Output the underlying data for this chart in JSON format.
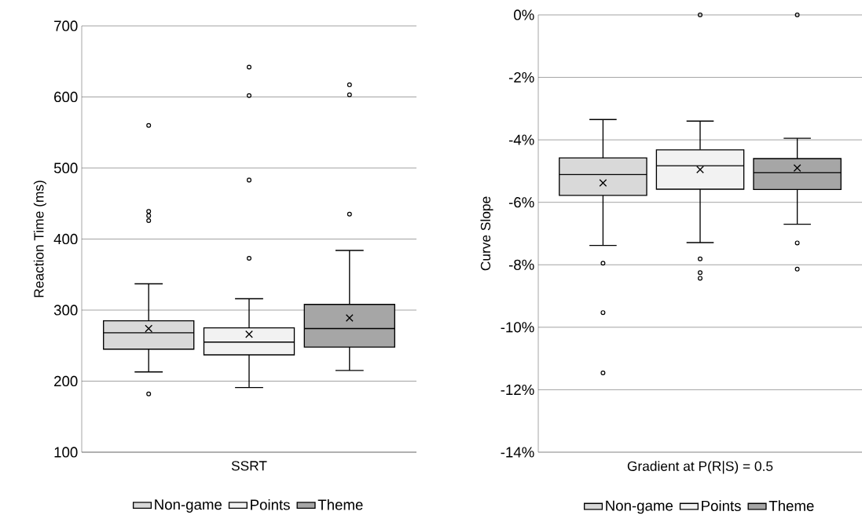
{
  "chart_data": [
    {
      "type": "box",
      "xlabel": "SSRT",
      "ylabel": "Reaction Time (ms)",
      "categories": [
        null
      ],
      "ylim": [
        100,
        700
      ],
      "yticks": [
        100,
        200,
        300,
        400,
        500,
        600,
        700
      ],
      "grid": "y",
      "legend": "bottom",
      "series": [
        {
          "name": "Non-game",
          "color": "#d9d9d9",
          "boxes": [
            {
              "low": 213,
              "q1": 245,
              "median": 268,
              "q3": 285,
              "high": 337,
              "mean": 274,
              "outliers": [
                560,
                439,
                433,
                426,
                182
              ]
            }
          ]
        },
        {
          "name": "Points",
          "color": "#f2f2f2",
          "boxes": [
            {
              "low": 191,
              "q1": 237,
              "median": 255,
              "q3": 275,
              "high": 316,
              "mean": 266,
              "outliers": [
                642,
                602,
                483,
                373
              ]
            }
          ]
        },
        {
          "name": "Theme",
          "color": "#a6a6a6",
          "boxes": [
            {
              "low": 215,
              "q1": 248,
              "median": 274,
              "q3": 308,
              "high": 384,
              "mean": 289,
              "outliers": [
                617,
                603,
                435
              ]
            }
          ]
        }
      ]
    },
    {
      "type": "box",
      "xlabel": "Gradient at P(R|S) = 0.5",
      "ylabel": "Curve Slope",
      "categories": [
        null
      ],
      "ylim": [
        -14,
        0
      ],
      "yticks": [
        {
          "value": -14,
          "label": "-14%"
        },
        {
          "value": -12,
          "label": "-12%"
        },
        {
          "value": -10,
          "label": "-10%"
        },
        {
          "value": -8,
          "label": "-8%"
        },
        {
          "value": -6,
          "label": "-6%"
        },
        {
          "value": -4,
          "label": "-4%"
        },
        {
          "value": -2,
          "label": "-2%"
        },
        {
          "value": 0,
          "label": "0%"
        }
      ],
      "grid": "y",
      "legend": "bottom",
      "series": [
        {
          "name": "Non-game",
          "color": "#d9d9d9",
          "boxes": [
            {
              "low": -7.38,
              "q1": -5.78,
              "median": -5.11,
              "q3": -4.58,
              "high": -3.35,
              "mean": -5.38,
              "outliers": [
                -7.95,
                -9.53,
                -11.46
              ]
            }
          ]
        },
        {
          "name": "Points",
          "color": "#f2f2f2",
          "boxes": [
            {
              "low": -7.29,
              "q1": -5.58,
              "median": -4.83,
              "q3": -4.32,
              "high": -3.4,
              "mean": -4.95,
              "outliers": [
                0,
                -7.81,
                -8.25,
                -8.43
              ]
            }
          ]
        },
        {
          "name": "Theme",
          "color": "#a6a6a6",
          "boxes": [
            {
              "low": -6.7,
              "q1": -5.59,
              "median": -5.05,
              "q3": -4.6,
              "high": -3.95,
              "mean": -4.9,
              "outliers": [
                0,
                -7.3,
                -8.14
              ]
            }
          ]
        }
      ]
    }
  ]
}
